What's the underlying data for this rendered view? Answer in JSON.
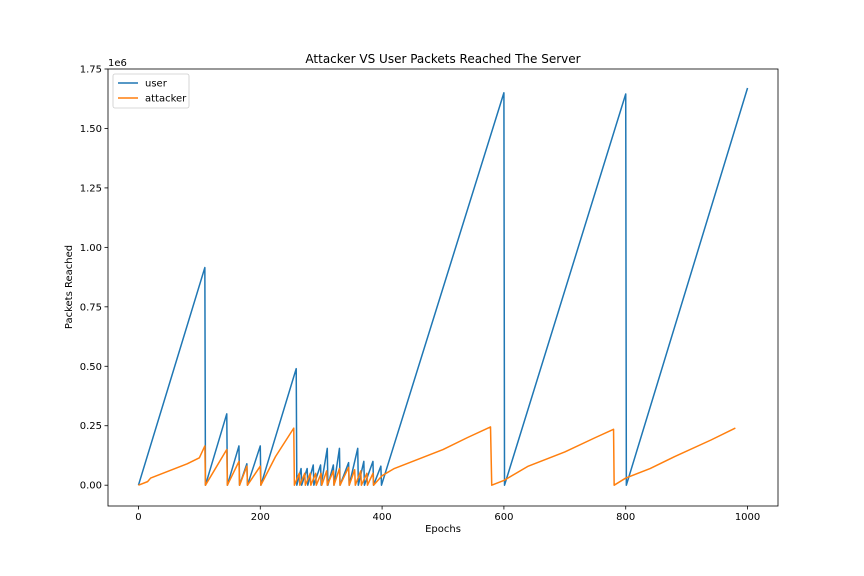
{
  "chart_data": {
    "type": "line",
    "title": "Attacker VS User Packets Reached The Server",
    "xlabel": "Epochs",
    "ylabel": "Packets Reached",
    "y_offset_label": "1e6",
    "xlim": [
      -50,
      1050
    ],
    "ylim": [
      -0.0875,
      1.75
    ],
    "y_scale_multiplier": 1000000,
    "x_ticks": [
      0,
      200,
      400,
      600,
      800,
      1000
    ],
    "x_tick_labels": [
      "0",
      "200",
      "400",
      "600",
      "800",
      "1000"
    ],
    "y_ticks": [
      0.0,
      0.25,
      0.5,
      0.75,
      1.0,
      1.25,
      1.5,
      1.75
    ],
    "y_tick_labels": [
      "0.00",
      "0.25",
      "0.50",
      "0.75",
      "1.00",
      "1.25",
      "1.50",
      "1.75"
    ],
    "grid": false,
    "legend_position": "upper left",
    "series": [
      {
        "name": "user",
        "color": "#1f77b4",
        "x": [
          0,
          109,
          110,
          145,
          146,
          165,
          166,
          178,
          179,
          200,
          201,
          259,
          260,
          267,
          268,
          277,
          278,
          287,
          288,
          299,
          300,
          310,
          311,
          320,
          321,
          330,
          331,
          345,
          346,
          360,
          361,
          370,
          371,
          385,
          386,
          398,
          399,
          600,
          601,
          800,
          801,
          1000
        ],
        "y": [
          0.0,
          0.915,
          0.0,
          0.3,
          0.0,
          0.165,
          0.0,
          0.09,
          0.0,
          0.165,
          0.0,
          0.49,
          0.0,
          0.07,
          0.0,
          0.07,
          0.0,
          0.085,
          0.0,
          0.085,
          0.0,
          0.155,
          0.0,
          0.085,
          0.0,
          0.155,
          0.0,
          0.095,
          0.0,
          0.155,
          0.0,
          0.1,
          0.0,
          0.1,
          0.0,
          0.08,
          0.0,
          1.65,
          0.0,
          1.645,
          0.0,
          1.67
        ]
      },
      {
        "name": "attacker",
        "color": "#ff7f0e",
        "x": [
          0,
          15,
          20,
          50,
          80,
          100,
          109,
          110,
          145,
          146,
          165,
          166,
          178,
          179,
          200,
          201,
          225,
          255,
          256,
          264,
          265,
          273,
          274,
          282,
          283,
          291,
          292,
          300,
          301,
          309,
          310,
          320,
          321,
          330,
          331,
          345,
          346,
          355,
          356,
          365,
          366,
          375,
          376,
          385,
          386,
          400,
          420,
          460,
          500,
          540,
          578,
          580,
          600,
          640,
          700,
          750,
          780,
          781,
          800,
          840,
          880,
          940,
          980
        ],
        "y": [
          0.0,
          0.015,
          0.03,
          0.06,
          0.09,
          0.115,
          0.165,
          0.0,
          0.15,
          0.0,
          0.1,
          0.0,
          0.08,
          0.0,
          0.08,
          0.0,
          0.12,
          0.24,
          0.0,
          0.05,
          0.0,
          0.05,
          0.0,
          0.05,
          0.0,
          0.05,
          0.0,
          0.05,
          0.0,
          0.06,
          0.0,
          0.06,
          0.0,
          0.07,
          0.0,
          0.075,
          0.0,
          0.065,
          0.0,
          0.06,
          0.0,
          0.05,
          0.0,
          0.05,
          0.0,
          0.04,
          0.07,
          0.11,
          0.15,
          0.2,
          0.245,
          0.0,
          0.02,
          0.08,
          0.14,
          0.2,
          0.235,
          0.0,
          0.03,
          0.07,
          0.12,
          0.19,
          0.24
        ]
      }
    ]
  }
}
